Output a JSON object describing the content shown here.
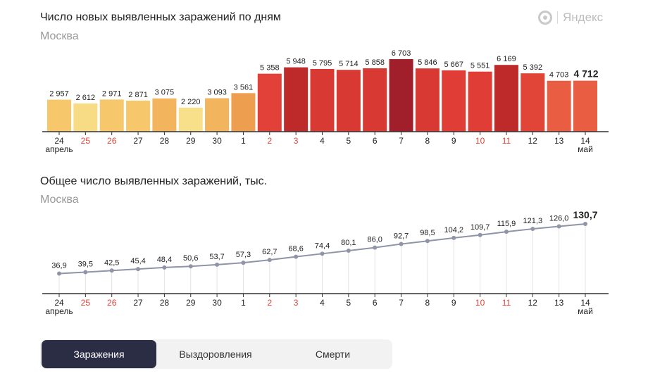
{
  "header": {
    "logo_text": "Яндекс",
    "logo_icon": "yandex-eye-icon"
  },
  "chart_data": [
    {
      "type": "bar",
      "title": "Число новых выявленных заражений по дням",
      "subtitle": "Москва",
      "categories": [
        "24",
        "25",
        "26",
        "27",
        "28",
        "29",
        "30",
        "1",
        "2",
        "3",
        "4",
        "5",
        "6",
        "7",
        "8",
        "9",
        "10",
        "11",
        "12",
        "13",
        "14"
      ],
      "month_labels": {
        "0": "апрель",
        "20": "май"
      },
      "weekend_indices": [
        1,
        2,
        8,
        9,
        16,
        17
      ],
      "values": [
        2957,
        2612,
        2971,
        2871,
        3075,
        2220,
        3093,
        3561,
        5358,
        5948,
        5795,
        5714,
        5858,
        6703,
        5846,
        5667,
        5551,
        6169,
        5392,
        4703,
        4712
      ],
      "value_labels": [
        "2 957",
        "2 612",
        "2 971",
        "2 871",
        "3 075",
        "2 220",
        "3 093",
        "3 561",
        "5 358",
        "5 948",
        "5 795",
        "5 714",
        "5 858",
        "6 703",
        "5 846",
        "5 667",
        "5 551",
        "6 169",
        "5 392",
        "4 703",
        "4 712"
      ],
      "colors": [
        "#f6c86b",
        "#f8dc85",
        "#f6c86b",
        "#f6c86b",
        "#f3b45e",
        "#f8e08a",
        "#f3b45e",
        "#ee9e4f",
        "#e2413a",
        "#be2a2a",
        "#d83a33",
        "#d83a33",
        "#d83a33",
        "#a11f2a",
        "#d83a33",
        "#df3d35",
        "#df3d35",
        "#be2a2a",
        "#e04538",
        "#e95e43",
        "#e95e43"
      ],
      "highlight_last": true
    },
    {
      "type": "line",
      "title": "Общее число выявленных заражений, тыс.",
      "subtitle": "Москва",
      "categories": [
        "24",
        "25",
        "26",
        "27",
        "28",
        "29",
        "30",
        "1",
        "2",
        "3",
        "4",
        "5",
        "6",
        "7",
        "8",
        "9",
        "10",
        "11",
        "12",
        "13",
        "14"
      ],
      "month_labels": {
        "0": "апрель",
        "20": "май"
      },
      "weekend_indices": [
        1,
        2,
        8,
        9,
        16,
        17
      ],
      "values": [
        36.9,
        39.5,
        42.5,
        45.4,
        48.4,
        50.6,
        53.7,
        57.3,
        62.7,
        68.6,
        74.4,
        80.1,
        86.0,
        92.7,
        98.5,
        104.2,
        109.7,
        115.9,
        121.3,
        126.0,
        130.7
      ],
      "value_labels": [
        "36,9",
        "39,5",
        "42,5",
        "45,4",
        "48,4",
        "50,6",
        "53,7",
        "57,3",
        "62,7",
        "68,6",
        "74,4",
        "80,1",
        "86,0",
        "92,7",
        "98,5",
        "104,2",
        "109,7",
        "115,9",
        "121,3",
        "126,0",
        "130,7"
      ],
      "line_color": "#8f94a6",
      "highlight_last": true
    }
  ],
  "tabs": [
    {
      "label": "Заражения",
      "active": true
    },
    {
      "label": "Выздоровления",
      "active": false
    },
    {
      "label": "Смерти",
      "active": false
    }
  ],
  "styles": {
    "axis_color": "#333333",
    "weekend_color": "#e0433a",
    "gridline_color": "#e3e3e3"
  }
}
